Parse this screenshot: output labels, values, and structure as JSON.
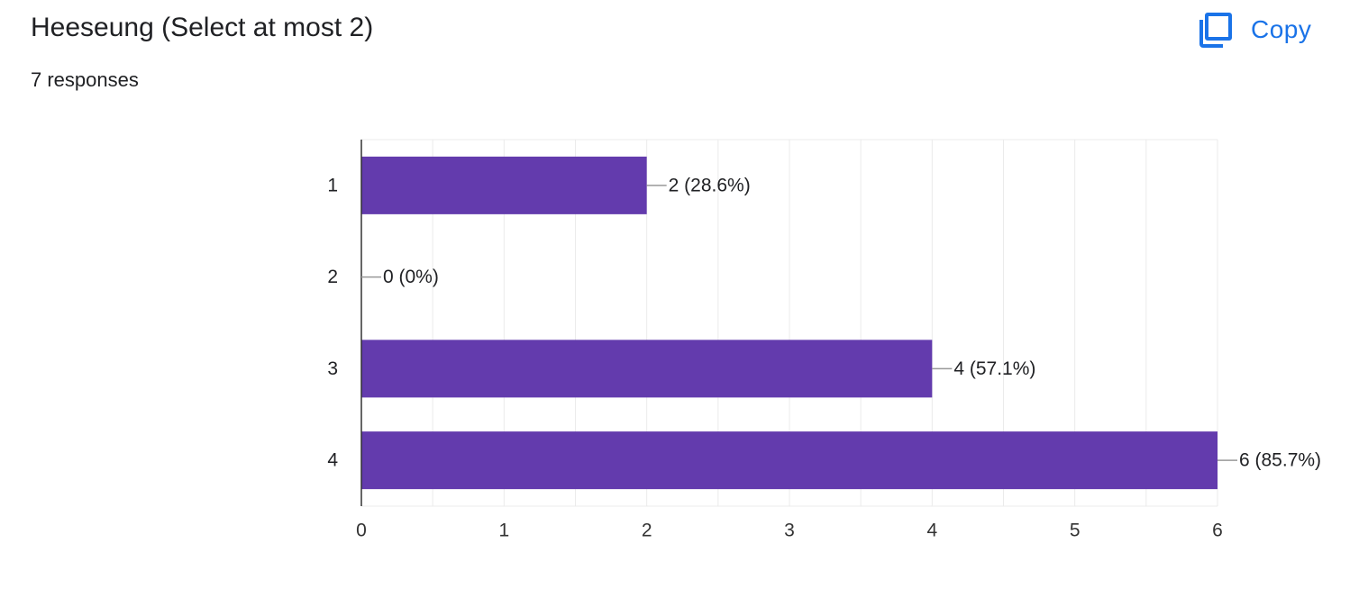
{
  "question": {
    "title": "Heeseung (Select at most 2)",
    "responses": "7 responses"
  },
  "toolbar": {
    "copy_label": "Copy",
    "copy_icon": "copy-icon"
  },
  "colors": {
    "bar": "#633bad",
    "accent": "#1a73e8",
    "grid": "#ebebeb",
    "axis": "#333333",
    "text": "#202124"
  },
  "chart_data": {
    "type": "bar",
    "orientation": "horizontal",
    "categories": [
      "1",
      "2",
      "3",
      "4"
    ],
    "values": [
      2,
      0,
      4,
      6
    ],
    "data_labels": [
      "2 (28.6%)",
      "0 (0%)",
      "4 (57.1%)",
      "6 (85.7%)"
    ],
    "x_ticks": [
      "0",
      "1",
      "2",
      "3",
      "4",
      "5",
      "6"
    ],
    "xlim": [
      0,
      6
    ],
    "grid": true,
    "legend": "none"
  }
}
